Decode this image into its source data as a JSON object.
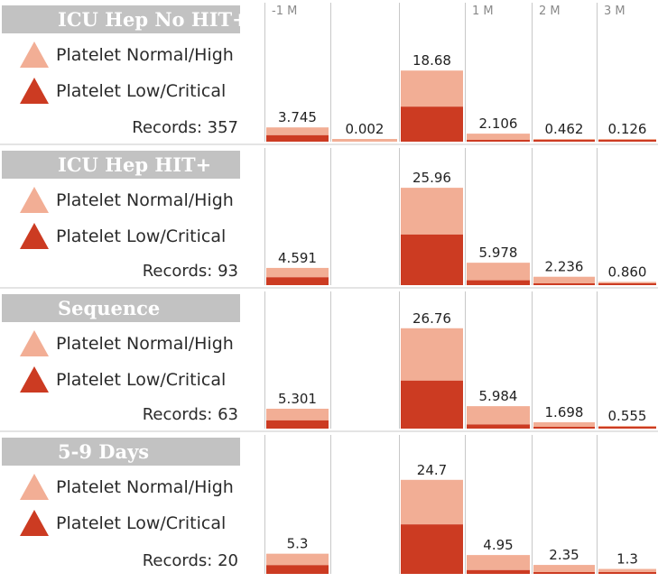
{
  "chart_data": {
    "type": "bar",
    "stacked": true,
    "categories": [
      "-1 M",
      "",
      "",
      "1 M",
      "2 M",
      "3 M"
    ],
    "series_names": [
      "Platelet Normal/High",
      "Platelet Low/Critical"
    ],
    "colors": {
      "normal_high": "#f2ae95",
      "low_critical": "#cc3b22",
      "grid": "#c8c8c8",
      "title_bg": "#c2c2c2"
    },
    "panels": [
      {
        "title": "ICU Hep No HIT+",
        "records_label": "Records: 357",
        "totals": [
          "3.745",
          "0.002",
          "18.68",
          "2.106",
          "0.462",
          "0.126"
        ],
        "total_values": [
          3.745,
          0.002,
          18.68,
          2.106,
          0.462,
          0.126
        ],
        "low_values": [
          1.7,
          0,
          9.2,
          0.3,
          0.1,
          0.05
        ],
        "ymax": 32
      },
      {
        "title": "ICU Hep HIT+",
        "records_label": "Records: 93",
        "totals": [
          "4.591",
          "",
          "25.96",
          "5.978",
          "2.236",
          "0.860"
        ],
        "total_values": [
          4.591,
          0,
          25.96,
          5.978,
          2.236,
          0.86
        ],
        "low_values": [
          2.1,
          0,
          13.5,
          1.3,
          0.35,
          0.15
        ],
        "ymax": 32
      },
      {
        "title": "Sequence",
        "records_label": "Records: 63",
        "totals": [
          "5.301",
          "",
          "26.76",
          "5.984",
          "1.698",
          "0.555"
        ],
        "total_values": [
          5.301,
          0,
          26.76,
          5.984,
          1.698,
          0.555
        ],
        "low_values": [
          2.2,
          0,
          12.8,
          1.1,
          0.3,
          0.1
        ],
        "ymax": 32
      },
      {
        "title": "5-9 Days",
        "records_label": "Records: 20",
        "totals": [
          "5.3",
          "",
          "24.7",
          "4.95",
          "2.35",
          "1.3"
        ],
        "total_values": [
          5.3,
          0,
          24.7,
          4.95,
          2.35,
          1.3
        ],
        "low_values": [
          2.3,
          0,
          13.0,
          1.0,
          0.4,
          0.2
        ],
        "ymax": 32
      }
    ]
  }
}
